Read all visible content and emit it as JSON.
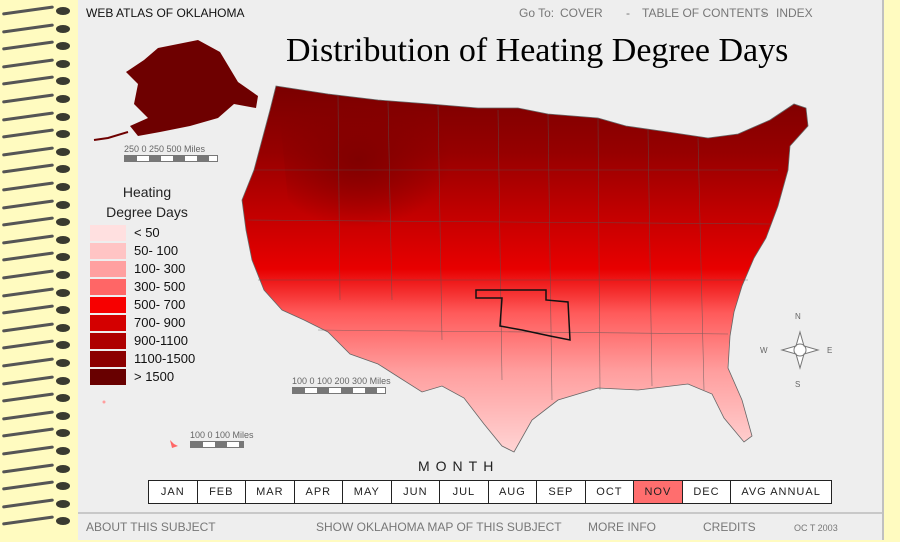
{
  "header": {
    "brand": "WEB ATLAS OF OKLAHOMA",
    "goto_label": "Go To:",
    "nav": [
      "COVER",
      "-",
      "TABLE OF CONTENTS",
      "-",
      "INDEX"
    ]
  },
  "map": {
    "title": "Distribution of Heating Degree Days",
    "scale_alaska": "250   0   250  500   Miles",
    "scale_conus": "100   0   100  200  300     Miles",
    "scale_hawaii": "100    0     100    Miles",
    "compass": {
      "n": "N",
      "s": "S",
      "e": "E",
      "w": "W"
    }
  },
  "legend": {
    "title_line1": "Heating",
    "title_line2": "Degree Days",
    "classes": [
      {
        "label": "< 50",
        "color": "#ffe0e0"
      },
      {
        "label": "50- 100",
        "color": "#ffc4c4"
      },
      {
        "label": "100- 300",
        "color": "#ffa0a0"
      },
      {
        "label": "300- 500",
        "color": "#ff6666"
      },
      {
        "label": "500- 700",
        "color": "#f70000"
      },
      {
        "label": "700- 900",
        "color": "#d40000"
      },
      {
        "label": "900-1100",
        "color": "#ae0000"
      },
      {
        "label": "1100-1500",
        "color": "#8c0000"
      },
      {
        "label": "> 1500",
        "color": "#680000"
      }
    ]
  },
  "month_selector": {
    "label": "MONTH",
    "months": [
      "JAN",
      "FEB",
      "MAR",
      "APR",
      "MAY",
      "JUN",
      "JUL",
      "AUG",
      "SEP",
      "OCT",
      "NOV",
      "DEC",
      "AVG ANNUAL"
    ],
    "active": "NOV",
    "active_color": "#ff6e6e"
  },
  "footer": {
    "about": "ABOUT THIS SUBJECT",
    "show_ok": "SHOW OKLAHOMA MAP OF THIS SUBJECT",
    "more_info": "MORE INFO",
    "credits": "CREDITS",
    "date": "OC T 2003"
  }
}
